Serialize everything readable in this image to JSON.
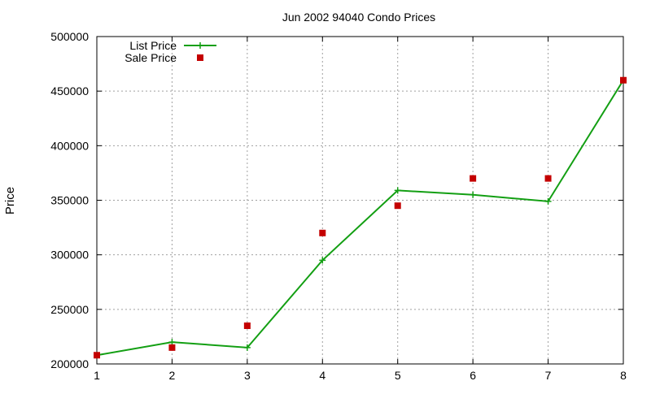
{
  "chart_data": {
    "type": "line",
    "title": "Jun 2002 94040 Condo Prices",
    "ylabel": "Price",
    "xlabel": "",
    "x": [
      1,
      2,
      3,
      4,
      5,
      6,
      7,
      8
    ],
    "xlim": [
      1,
      8
    ],
    "ylim": [
      200000,
      500000
    ],
    "xticks": [
      "1",
      "2",
      "3",
      "4",
      "5",
      "6",
      "7",
      "8"
    ],
    "yticks": [
      "200000",
      "250000",
      "300000",
      "350000",
      "400000",
      "450000",
      "500000"
    ],
    "grid": true,
    "legend_position": "top-left",
    "series": [
      {
        "name": "List Price",
        "style": "line-with-plus-markers",
        "color": "#139f13",
        "values": [
          208000,
          220000,
          215000,
          295000,
          359000,
          355000,
          349000,
          460000
        ]
      },
      {
        "name": "Sale Price",
        "style": "square-markers",
        "color": "#c40000",
        "values": [
          208000,
          215000,
          235000,
          320000,
          345000,
          370000,
          370000,
          460000
        ]
      }
    ]
  }
}
